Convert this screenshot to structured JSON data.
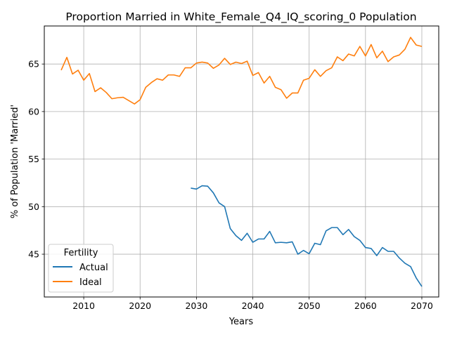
{
  "chart_data": {
    "type": "line",
    "title": "Proportion Married in White_Female_Q4_IQ_scoring_0 Population",
    "xlabel": "Years",
    "ylabel": "% of Population 'Married'",
    "xlim": [
      2003,
      2073
    ],
    "ylim": [
      40.5,
      69.0
    ],
    "xticks": [
      2010,
      2020,
      2030,
      2040,
      2050,
      2060,
      2070
    ],
    "yticks": [
      45,
      50,
      55,
      60,
      65
    ],
    "grid": true,
    "legend": {
      "title": "Fertility",
      "position": "lower-left"
    },
    "series": [
      {
        "name": "Actual",
        "color": "#1f77b4",
        "x": [
          2029,
          2030,
          2031,
          2032,
          2033,
          2034,
          2035,
          2036,
          2037,
          2038,
          2039,
          2040,
          2041,
          2042,
          2043,
          2044,
          2045,
          2046,
          2047,
          2048,
          2049,
          2050,
          2051,
          2052,
          2053,
          2054,
          2055,
          2056,
          2057,
          2058,
          2059,
          2060,
          2061,
          2062,
          2063,
          2064,
          2065,
          2066,
          2067,
          2068,
          2069,
          2070
        ],
        "y": [
          51.95,
          51.85,
          52.2,
          52.15,
          51.45,
          50.4,
          50.0,
          47.7,
          46.95,
          46.45,
          47.2,
          46.25,
          46.6,
          46.6,
          47.4,
          46.2,
          46.25,
          46.2,
          46.3,
          45.0,
          45.4,
          45.05,
          46.15,
          46.0,
          47.45,
          47.8,
          47.8,
          47.05,
          47.6,
          46.85,
          46.45,
          45.7,
          45.6,
          44.85,
          45.7,
          45.3,
          45.3,
          44.6,
          44.05,
          43.7,
          42.5,
          41.6
        ]
      },
      {
        "name": "Ideal",
        "color": "#ff7f0e",
        "x": [
          2006,
          2007,
          2008,
          2009,
          2010,
          2011,
          2012,
          2013,
          2014,
          2015,
          2016,
          2017,
          2018,
          2019,
          2020,
          2021,
          2022,
          2023,
          2024,
          2025,
          2026,
          2027,
          2028,
          2029,
          2030,
          2031,
          2032,
          2033,
          2034,
          2035,
          2036,
          2037,
          2038,
          2039,
          2040,
          2041,
          2042,
          2043,
          2044,
          2045,
          2046,
          2047,
          2048,
          2049,
          2050,
          2051,
          2052,
          2053,
          2054,
          2055,
          2056,
          2057,
          2058,
          2059,
          2060,
          2061,
          2062,
          2063,
          2064,
          2065,
          2066,
          2067,
          2068,
          2069,
          2070
        ],
        "y": [
          64.35,
          65.7,
          63.95,
          64.35,
          63.3,
          64.0,
          62.1,
          62.5,
          62.0,
          61.35,
          61.45,
          61.5,
          61.15,
          60.8,
          61.25,
          62.55,
          63.05,
          63.45,
          63.3,
          63.85,
          63.85,
          63.7,
          64.6,
          64.6,
          65.1,
          65.2,
          65.1,
          64.55,
          64.9,
          65.6,
          64.95,
          65.2,
          65.05,
          65.3,
          63.8,
          64.1,
          63.0,
          63.7,
          62.55,
          62.3,
          61.4,
          61.95,
          61.95,
          63.3,
          63.5,
          64.4,
          63.7,
          64.3,
          64.6,
          65.75,
          65.35,
          66.05,
          65.85,
          66.85,
          65.85,
          67.05,
          65.65,
          66.35,
          65.25,
          65.75,
          65.95,
          66.55,
          67.8,
          67.0,
          66.85
        ]
      }
    ]
  }
}
